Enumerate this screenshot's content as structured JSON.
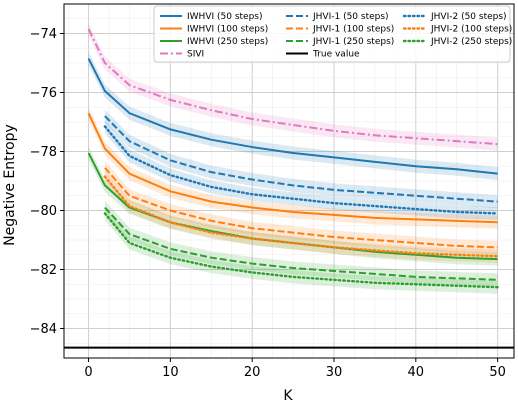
{
  "chart_data": {
    "type": "line",
    "xlabel": "K",
    "ylabel": "Negative Entropy",
    "xlim": [
      -3,
      52
    ],
    "ylim": [
      -85.0,
      -73.0
    ],
    "xticks": [
      0,
      10,
      20,
      30,
      40,
      50
    ],
    "yticks": [
      -84,
      -82,
      -80,
      -78,
      -76,
      -74
    ],
    "grid": true,
    "legend_position": "top-right",
    "true_value": -84.65,
    "series": [
      {
        "name": "IWHVI (50 steps)",
        "color": "#1f77b4",
        "style": "solid",
        "x": [
          0,
          2,
          5,
          10,
          15,
          20,
          25,
          30,
          35,
          40,
          45,
          50
        ],
        "y": [
          -74.85,
          -75.95,
          -76.7,
          -77.25,
          -77.6,
          -77.85,
          -78.05,
          -78.2,
          -78.35,
          -78.5,
          -78.6,
          -78.75
        ]
      },
      {
        "name": "IWHVI (100 steps)",
        "color": "#ff7f0e",
        "style": "solid",
        "x": [
          0,
          2,
          5,
          10,
          15,
          20,
          25,
          30,
          35,
          40,
          45,
          50
        ],
        "y": [
          -76.7,
          -77.9,
          -78.75,
          -79.35,
          -79.7,
          -79.9,
          -80.05,
          -80.15,
          -80.25,
          -80.3,
          -80.35,
          -80.4
        ]
      },
      {
        "name": "IWHVI (250 steps)",
        "color": "#2ca02c",
        "style": "solid",
        "x": [
          0,
          2,
          5,
          10,
          15,
          20,
          25,
          30,
          35,
          40,
          45,
          50
        ],
        "y": [
          -78.05,
          -79.15,
          -79.9,
          -80.4,
          -80.7,
          -80.95,
          -81.1,
          -81.25,
          -81.4,
          -81.5,
          -81.6,
          -81.65
        ]
      },
      {
        "name": "SIVI",
        "color": "#e377c2",
        "style": "dashdot",
        "x": [
          0,
          2,
          5,
          10,
          15,
          20,
          25,
          30,
          35,
          40,
          45,
          50
        ],
        "y": [
          -73.85,
          -75.0,
          -75.75,
          -76.25,
          -76.6,
          -76.9,
          -77.1,
          -77.3,
          -77.45,
          -77.55,
          -77.65,
          -77.75
        ]
      },
      {
        "name": "JHVI-1 (50 steps)",
        "color": "#1f77b4",
        "style": "dashed",
        "x": [
          2,
          5,
          10,
          15,
          20,
          25,
          30,
          35,
          40,
          45,
          50
        ],
        "y": [
          -76.8,
          -77.65,
          -78.3,
          -78.7,
          -78.95,
          -79.15,
          -79.3,
          -79.4,
          -79.5,
          -79.6,
          -79.7
        ]
      },
      {
        "name": "JHVI-1 (100 steps)",
        "color": "#ff7f0e",
        "style": "dashed",
        "x": [
          2,
          5,
          10,
          15,
          20,
          25,
          30,
          35,
          40,
          45,
          50
        ],
        "y": [
          -78.55,
          -79.5,
          -80.0,
          -80.35,
          -80.6,
          -80.75,
          -80.9,
          -81.0,
          -81.1,
          -81.2,
          -81.25
        ]
      },
      {
        "name": "JHVI-1 (250 steps)",
        "color": "#2ca02c",
        "style": "dashed",
        "x": [
          2,
          5,
          10,
          15,
          20,
          25,
          30,
          35,
          40,
          45,
          50
        ],
        "y": [
          -79.9,
          -80.8,
          -81.3,
          -81.6,
          -81.8,
          -81.95,
          -82.05,
          -82.15,
          -82.25,
          -82.3,
          -82.35
        ]
      },
      {
        "name": "JHVI-2 (50 steps)",
        "color": "#1f77b4",
        "style": "dotted",
        "x": [
          2,
          5,
          10,
          15,
          20,
          25,
          30,
          35,
          40,
          45,
          50
        ],
        "y": [
          -77.15,
          -78.15,
          -78.8,
          -79.2,
          -79.45,
          -79.6,
          -79.75,
          -79.85,
          -79.95,
          -80.05,
          -80.1
        ]
      },
      {
        "name": "JHVI-2 (100 steps)",
        "color": "#ff7f0e",
        "style": "dotted",
        "x": [
          2,
          5,
          10,
          15,
          20,
          25,
          30,
          35,
          40,
          45,
          50
        ],
        "y": [
          -78.85,
          -79.85,
          -80.4,
          -80.75,
          -80.95,
          -81.1,
          -81.25,
          -81.35,
          -81.45,
          -81.5,
          -81.55
        ]
      },
      {
        "name": "JHVI-2 (250 steps)",
        "color": "#2ca02c",
        "style": "dotted",
        "x": [
          2,
          5,
          10,
          15,
          20,
          25,
          30,
          35,
          40,
          45,
          50
        ],
        "y": [
          -80.1,
          -81.1,
          -81.6,
          -81.9,
          -82.1,
          -82.25,
          -82.35,
          -82.45,
          -82.5,
          -82.55,
          -82.6
        ]
      }
    ],
    "true_value_label": "True value",
    "true_value_color": "#000000",
    "legend_columns": [
      [
        "IWHVI (50 steps)",
        "IWHVI (100 steps)",
        "IWHVI (250 steps)",
        "SIVI"
      ],
      [
        "JHVI-1 (50 steps)",
        "JHVI-1 (100 steps)",
        "JHVI-1 (250 steps)",
        "True value"
      ],
      [
        "JHVI-2 (50 steps)",
        "JHVI-2 (100 steps)",
        "JHVI-2 (250 steps)"
      ]
    ]
  }
}
